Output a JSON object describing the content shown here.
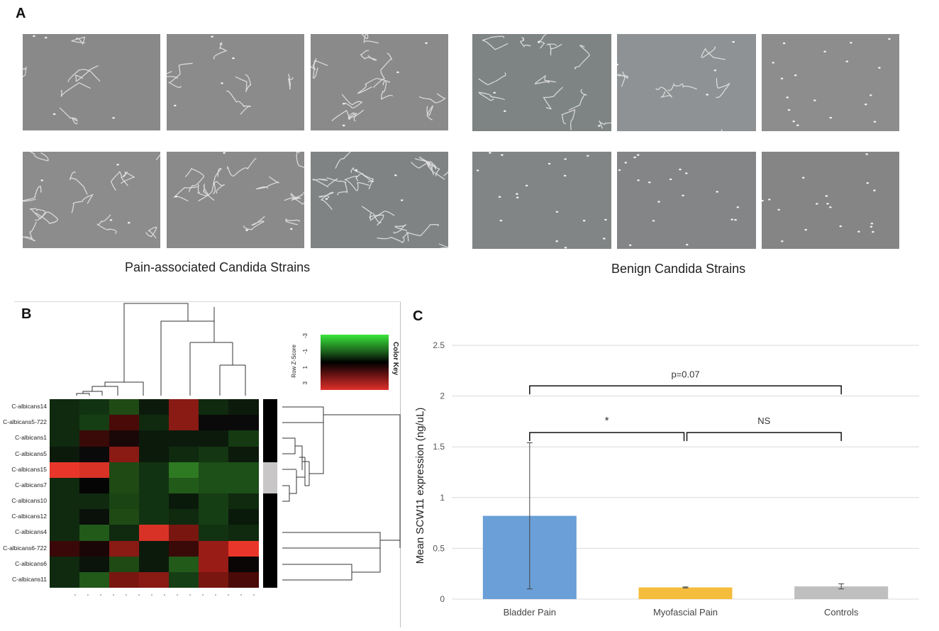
{
  "panel_a": {
    "letter": "A",
    "pain_caption": "Pain-associated Candida Strains",
    "benign_caption": "Benign Candida Strains"
  },
  "panel_b": {
    "letter": "B",
    "row_labels": [
      "C-albicans14",
      "C-albicans5-722",
      "C-albicans1",
      "C-albicans5",
      "C-albicans15",
      "C-albicans7",
      "C-albicans10",
      "C-albicans12",
      "C-albicans4",
      "C-albicans6-722",
      "C-albicans6",
      "C-albicans11"
    ],
    "color_key": {
      "title": "Color Key",
      "axis_label": "Row Z-Score",
      "ticks": [
        "-3",
        "-1",
        "1",
        "3"
      ]
    },
    "heatmap_colors": [
      [
        "#0f2a0f",
        "#123312",
        "#1f4a14",
        "#0c1a0c",
        "#8a1a14",
        "#0f2a0f",
        "#0c1a0c"
      ],
      [
        "#0f2a0f",
        "#163e14",
        "#4a0a08",
        "#0f2a0f",
        "#8a1a14",
        "#0a0a0a",
        "#0a0a0a"
      ],
      [
        "#0f2a0f",
        "#3a0a08",
        "#1a0808",
        "#0c1a0c",
        "#0c1a0c",
        "#0c1a0c",
        "#153a12"
      ],
      [
        "#0c1a0c",
        "#0a0a0a",
        "#8a1a14",
        "#0c1a0c",
        "#0f2a0f",
        "#143612",
        "#0c1a0c"
      ],
      [
        "#e8372a",
        "#d83226",
        "#1f4a14",
        "#123312",
        "#2e7a22",
        "#1d4f18",
        "#1d4f18"
      ],
      [
        "#0f2a0f",
        "#050505",
        "#1f4a14",
        "#123312",
        "#225a1a",
        "#1d4f18",
        "#1d4f18"
      ],
      [
        "#0f2a0f",
        "#0f2a0f",
        "#1a4414",
        "#123312",
        "#0a1a0a",
        "#163e14",
        "#0f2a0f"
      ],
      [
        "#0f2a0f",
        "#0a100a",
        "#1f4a14",
        "#123312",
        "#0f2a0f",
        "#163e14",
        "#0a1a0a"
      ],
      [
        "#0f2a0f",
        "#225a1a",
        "#0f2a0f",
        "#d83226",
        "#7a1610",
        "#123312",
        "#0f2a0f"
      ],
      [
        "#3a0808",
        "#1a0606",
        "#8a1a14",
        "#0c1a0c",
        "#3a0a08",
        "#9a1c16",
        "#e8372a"
      ],
      [
        "#0f2a0f",
        "#0a140a",
        "#1f4a14",
        "#0c1a0c",
        "#225a1a",
        "#9a1c16",
        "#0a0606"
      ],
      [
        "#0f2a0f",
        "#225a1a",
        "#7a1610",
        "#8a1a14",
        "#163e14",
        "#7a1610",
        "#4a0a08"
      ]
    ],
    "side_bar_colors": [
      "#000000",
      "#000000",
      "#000000",
      "#000000",
      "#c8c6c6",
      "#c8c6c6",
      "#000000",
      "#000000",
      "#000000",
      "#000000",
      "#000000",
      "#000000"
    ]
  },
  "panel_c": {
    "letter": "C"
  },
  "chart_data": {
    "type": "bar",
    "categories": [
      "Bladder Pain",
      "Myofascial Pain",
      "Controls"
    ],
    "values": [
      0.82,
      0.115,
      0.125
    ],
    "error": [
      0.72,
      0.005,
      0.025
    ],
    "colors": [
      "#6a9fd8",
      "#f5bd3c",
      "#bfbfbf"
    ],
    "ylabel": "Mean SCW11 expression (ng/uL)",
    "ylim": [
      0,
      2.5
    ],
    "yticks": [
      "0",
      "0.5",
      "1",
      "1.5",
      "2",
      "2.5"
    ],
    "grid": true,
    "annotations": [
      {
        "label": "p=0.07",
        "from": "Bladder Pain",
        "to": "Controls",
        "level": 2.1
      },
      {
        "label": "*",
        "from": "Bladder Pain",
        "to": "Myofascial Pain",
        "level": 1.64
      },
      {
        "label": "NS",
        "from": "Myofascial Pain",
        "to": "Controls",
        "level": 1.64
      }
    ]
  }
}
